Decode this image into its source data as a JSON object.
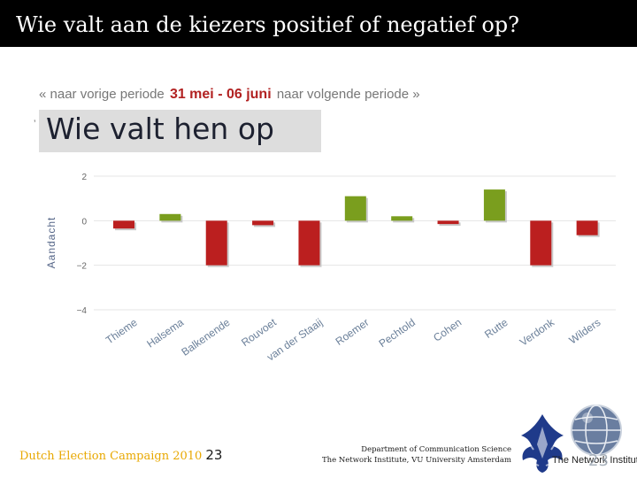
{
  "slide": {
    "title": "Wie valt aan de kiezers positief of negatief op?",
    "footer_campaign": "Dutch Election Campaign 2010",
    "slide_number": "23",
    "dept_line1": "Department of Communication Science",
    "dept_line2": "The Network Institute,  VU University Amsterdam",
    "institute_logo_text": "The Network Institute"
  },
  "nav": {
    "prev_label": "« naar vorige periode",
    "period": "31 mei - 06 juni",
    "next_label": "naar volgende periode »"
  },
  "heading": {
    "stray_mark": "’",
    "text": "Wie valt hen op"
  },
  "colors": {
    "positive": "#7a9e1e",
    "negative": "#bb1f1f",
    "axis_label": "#556688",
    "grid": "#e4e4e4",
    "accent_footer": "#e8a800"
  },
  "chart_data": {
    "type": "bar",
    "title": "Wie valt hen op",
    "ylabel": "Aandacht",
    "xlabel": "",
    "ylim": [
      -4,
      2
    ],
    "yticks": [
      "2",
      "0",
      "−2",
      "−4"
    ],
    "ytick_values": [
      2,
      0,
      -2,
      -4
    ],
    "categories": [
      "Thieme",
      "Halsema",
      "Balkenende",
      "Rouvoet",
      "van der Staaij",
      "Roemer",
      "Pechtold",
      "Cohen",
      "Rutte",
      "Verdonk",
      "Wilders"
    ],
    "values": [
      -0.35,
      0.3,
      -2.0,
      -0.2,
      -2.0,
      1.1,
      0.2,
      -0.15,
      1.4,
      -2.0,
      -0.65
    ],
    "grid": true
  }
}
